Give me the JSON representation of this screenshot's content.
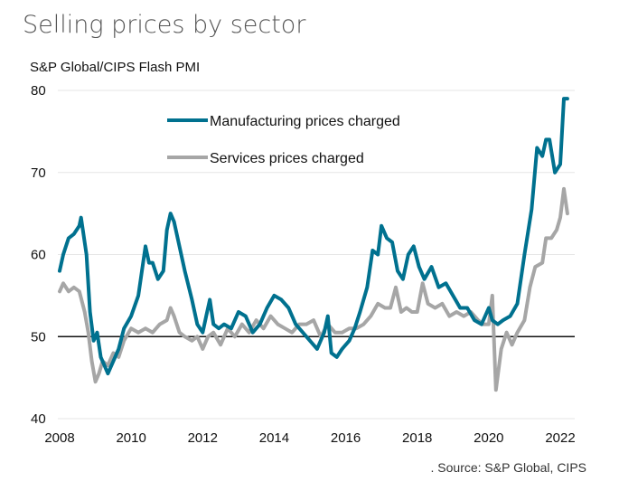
{
  "chart_data": {
    "type": "line",
    "title": "Selling prices by sector",
    "subtitle": "S&P Global/CIPS Flash PMI",
    "source": ". Source: S&P Global, CIPS",
    "xlabel": "",
    "ylabel": "",
    "xlim": [
      2008,
      2022.2
    ],
    "ylim": [
      40,
      80
    ],
    "x_ticks": [
      "2008",
      "2010",
      "2012",
      "2014",
      "2016",
      "2018",
      "2020",
      "2022"
    ],
    "y_ticks": [
      "40",
      "50",
      "60",
      "70",
      "80"
    ],
    "reference_line": 50,
    "grid": true,
    "legend_position": "top-left",
    "series": [
      {
        "name": "Manufacturing prices charged",
        "color": "#00718f",
        "x": [
          2008.0,
          2008.1,
          2008.25,
          2008.4,
          2008.55,
          2008.6,
          2008.75,
          2008.85,
          2008.95,
          2009.05,
          2009.15,
          2009.25,
          2009.35,
          2009.5,
          2009.65,
          2009.8,
          2010.0,
          2010.2,
          2010.4,
          2010.5,
          2010.6,
          2010.75,
          2010.9,
          2011.0,
          2011.1,
          2011.2,
          2011.3,
          2011.5,
          2011.7,
          2011.85,
          2012.0,
          2012.1,
          2012.2,
          2012.3,
          2012.45,
          2012.6,
          2012.8,
          2013.0,
          2013.2,
          2013.4,
          2013.6,
          2013.8,
          2014.0,
          2014.2,
          2014.4,
          2014.6,
          2014.8,
          2015.0,
          2015.2,
          2015.4,
          2015.5,
          2015.6,
          2015.75,
          2015.9,
          2016.1,
          2016.25,
          2016.4,
          2016.6,
          2016.75,
          2016.9,
          2017.0,
          2017.15,
          2017.3,
          2017.45,
          2017.6,
          2017.75,
          2017.9,
          2018.05,
          2018.2,
          2018.4,
          2018.6,
          2018.8,
          2019.0,
          2019.2,
          2019.4,
          2019.6,
          2019.8,
          2020.0,
          2020.1,
          2020.25,
          2020.4,
          2020.6,
          2020.8,
          2021.0,
          2021.2,
          2021.35,
          2021.5,
          2021.6,
          2021.7,
          2021.85,
          2022.0,
          2022.1,
          2022.2
        ],
        "values": [
          58.0,
          60.0,
          62.0,
          62.5,
          63.5,
          64.5,
          60.0,
          53.0,
          49.5,
          50.5,
          47.5,
          46.5,
          45.5,
          47.0,
          48.5,
          51.0,
          52.5,
          55.0,
          61.0,
          59.0,
          59.0,
          57.0,
          58.0,
          63.0,
          65.0,
          64.0,
          62.0,
          58.0,
          54.5,
          51.5,
          50.5,
          52.5,
          54.5,
          51.5,
          51.0,
          51.5,
          51.0,
          53.0,
          52.5,
          50.5,
          51.5,
          53.5,
          55.0,
          54.5,
          53.5,
          51.5,
          50.5,
          49.5,
          48.5,
          50.5,
          52.5,
          48.0,
          47.5,
          48.5,
          49.5,
          51.0,
          53.0,
          56.0,
          60.5,
          60.0,
          63.5,
          62.0,
          61.5,
          58.0,
          57.0,
          60.0,
          61.0,
          58.5,
          57.0,
          58.5,
          56.0,
          56.5,
          55.0,
          53.5,
          53.5,
          52.0,
          51.5,
          53.5,
          52.0,
          51.5,
          52.0,
          52.5,
          54.0,
          60.0,
          65.5,
          73.0,
          72.0,
          74.0,
          74.0,
          70.0,
          71.0,
          79.0,
          79.0
        ]
      },
      {
        "name": "Services prices charged",
        "color": "#a6a6a6",
        "x": [
          2008.0,
          2008.1,
          2008.25,
          2008.4,
          2008.55,
          2008.7,
          2008.8,
          2008.9,
          2009.0,
          2009.1,
          2009.2,
          2009.35,
          2009.5,
          2009.65,
          2009.8,
          2010.0,
          2010.2,
          2010.4,
          2010.6,
          2010.8,
          2011.0,
          2011.1,
          2011.2,
          2011.35,
          2011.5,
          2011.7,
          2011.85,
          2012.0,
          2012.15,
          2012.3,
          2012.5,
          2012.7,
          2012.9,
          2013.1,
          2013.3,
          2013.5,
          2013.7,
          2013.9,
          2014.1,
          2014.3,
          2014.5,
          2014.7,
          2014.9,
          2015.1,
          2015.3,
          2015.5,
          2015.7,
          2015.9,
          2016.1,
          2016.3,
          2016.5,
          2016.7,
          2016.9,
          2017.1,
          2017.25,
          2017.4,
          2017.55,
          2017.7,
          2017.85,
          2018.0,
          2018.15,
          2018.3,
          2018.5,
          2018.7,
          2018.9,
          2019.1,
          2019.3,
          2019.5,
          2019.7,
          2019.85,
          2020.0,
          2020.1,
          2020.2,
          2020.35,
          2020.5,
          2020.65,
          2020.8,
          2021.0,
          2021.15,
          2021.3,
          2021.5,
          2021.6,
          2021.75,
          2021.9,
          2022.0,
          2022.1,
          2022.2
        ],
        "values": [
          55.5,
          56.5,
          55.5,
          56.0,
          55.5,
          53.0,
          50.5,
          47.0,
          44.5,
          45.5,
          47.0,
          46.5,
          48.0,
          47.5,
          49.5,
          51.0,
          50.5,
          51.0,
          50.5,
          51.5,
          52.0,
          53.5,
          52.5,
          50.5,
          50.0,
          49.5,
          50.0,
          48.5,
          50.0,
          50.5,
          49.0,
          51.0,
          50.0,
          51.5,
          50.5,
          52.0,
          51.0,
          52.5,
          51.5,
          51.0,
          50.5,
          51.5,
          51.5,
          52.0,
          50.0,
          51.5,
          50.5,
          50.5,
          51.0,
          51.0,
          51.5,
          52.5,
          54.0,
          53.5,
          53.5,
          56.0,
          53.0,
          53.5,
          53.0,
          53.0,
          56.5,
          54.0,
          53.5,
          54.0,
          52.5,
          53.0,
          52.5,
          53.0,
          52.0,
          51.5,
          51.5,
          55.0,
          43.5,
          48.5,
          50.5,
          49.0,
          50.5,
          52.0,
          56.0,
          58.5,
          59.0,
          62.0,
          62.0,
          63.0,
          64.5,
          68.0,
          65.0
        ]
      }
    ]
  }
}
